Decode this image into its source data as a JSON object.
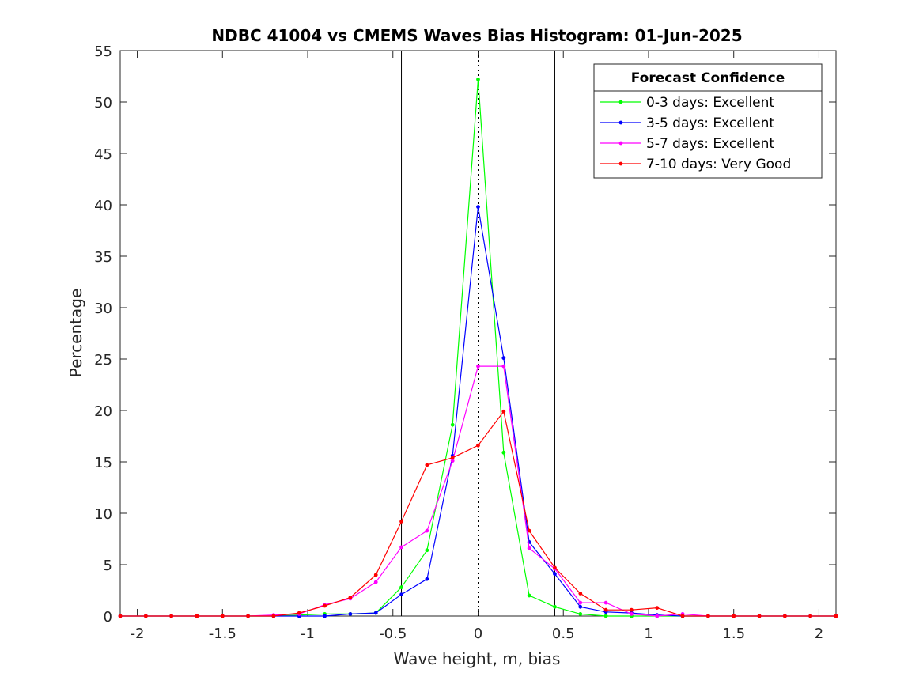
{
  "chart_data": {
    "type": "line",
    "title": "NDBC 41004 vs CMEMS Waves Bias Histogram: 01-Jun-2025",
    "xlabel": "Wave height, m, bias",
    "ylabel": "Percentage",
    "xlim": [
      -2.1,
      2.1
    ],
    "ylim": [
      0,
      55
    ],
    "xticks": [
      -2,
      -1.5,
      -1,
      -0.5,
      0,
      0.5,
      1,
      1.5,
      2
    ],
    "xtick_labels": [
      "-2",
      "-1.5",
      "-1",
      "-0.5",
      "0",
      "0.5",
      "1",
      "1.5",
      "2"
    ],
    "yticks": [
      0,
      5,
      10,
      15,
      20,
      25,
      30,
      35,
      40,
      45,
      50,
      55
    ],
    "ytick_labels": [
      "0",
      "5",
      "10",
      "15",
      "20",
      "25",
      "30",
      "35",
      "40",
      "45",
      "50",
      "55"
    ],
    "grid": false,
    "reference_lines": [
      {
        "x": -0.45,
        "style": "solid"
      },
      {
        "x": 0,
        "style": "dotted"
      },
      {
        "x": 0.45,
        "style": "solid"
      }
    ],
    "legend": {
      "title": "Forecast Confidence",
      "position": "top-right"
    },
    "x": [
      -2.1,
      -1.95,
      -1.8,
      -1.65,
      -1.5,
      -1.35,
      -1.2,
      -1.05,
      -0.9,
      -0.75,
      -0.6,
      -0.45,
      -0.3,
      -0.15,
      0,
      0.15,
      0.3,
      0.45,
      0.6,
      0.75,
      0.9,
      1.05,
      1.2,
      1.35,
      1.5,
      1.65,
      1.8,
      1.95,
      2.1
    ],
    "series": [
      {
        "name": "0-3 days: Excellent",
        "color": "#00ff00",
        "values": [
          0,
          0,
          0,
          0,
          0,
          0,
          0,
          0.1,
          0.2,
          0.2,
          0.3,
          2.8,
          6.4,
          18.6,
          52.2,
          15.9,
          2.0,
          0.9,
          0.2,
          0.0,
          0.0,
          0.0,
          0.0,
          0,
          0,
          0,
          0,
          0,
          0
        ]
      },
      {
        "name": "3-5 days: Excellent",
        "color": "#0000ff",
        "values": [
          0,
          0,
          0,
          0,
          0,
          0,
          0,
          0,
          0.0,
          0.2,
          0.3,
          2.1,
          3.6,
          15.6,
          39.8,
          25.1,
          7.2,
          4.1,
          0.9,
          0.4,
          0.3,
          0.1,
          0.0,
          0,
          0,
          0,
          0,
          0,
          0
        ]
      },
      {
        "name": "5-7 days: Excellent",
        "color": "#ff00ff",
        "values": [
          0,
          0,
          0,
          0,
          0,
          0,
          0.1,
          0.2,
          1.1,
          1.7,
          3.3,
          6.7,
          8.3,
          15.1,
          24.3,
          24.3,
          6.6,
          4.6,
          1.3,
          1.3,
          0.2,
          0.0,
          0.2,
          0,
          0,
          0,
          0,
          0,
          0
        ]
      },
      {
        "name": "7-10 days: Very Good",
        "color": "#ff0000",
        "values": [
          0,
          0,
          0,
          0,
          0,
          0,
          0,
          0.3,
          1.0,
          1.8,
          4.0,
          9.2,
          14.7,
          15.4,
          16.6,
          19.9,
          8.3,
          4.7,
          2.2,
          0.6,
          0.6,
          0.8,
          0.0,
          0,
          0,
          0,
          0,
          0,
          0
        ]
      }
    ]
  }
}
